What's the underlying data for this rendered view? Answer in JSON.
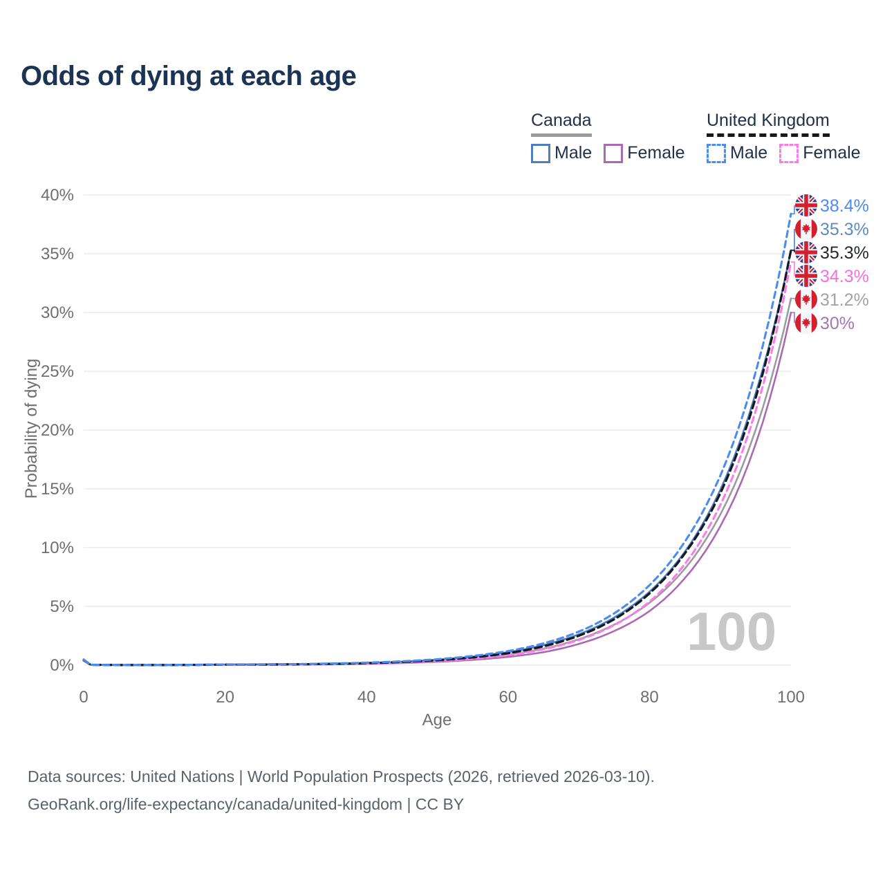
{
  "header": {
    "title": "Odds of dying at each age"
  },
  "legend": {
    "groups": [
      {
        "name": "Canada",
        "underline_color": "#9b9ba1",
        "underline_style": "solid",
        "items": [
          {
            "label": "Male",
            "color": "#4d7dbf",
            "style": "solid"
          },
          {
            "label": "Female",
            "color": "#aa6ab3",
            "style": "solid"
          }
        ]
      },
      {
        "name": "United Kingdom",
        "underline_color": "#17191d",
        "underline_style": "dashed",
        "items": [
          {
            "label": "Male",
            "color": "#4b8cf2",
            "style": "dashed"
          },
          {
            "label": "Female",
            "color": "#fb7ce9",
            "style": "dashed"
          }
        ]
      }
    ]
  },
  "chart_data": {
    "type": "line",
    "title": "Odds of dying at each age",
    "xlabel": "Age",
    "ylabel": "Probability of dying",
    "xlim": [
      0,
      100
    ],
    "ylim": [
      0,
      40
    ],
    "grid": "horizontal",
    "age_cursor": "100",
    "x_ticks": [
      0,
      20,
      40,
      60,
      80,
      100
    ],
    "y_ticks": [
      {
        "v": 0,
        "t": "0%"
      },
      {
        "v": 5,
        "t": "5%"
      },
      {
        "v": 10,
        "t": "10%"
      },
      {
        "v": 15,
        "t": "15%"
      },
      {
        "v": 20,
        "t": "20%"
      },
      {
        "v": 25,
        "t": "25%"
      },
      {
        "v": 30,
        "t": "30%"
      },
      {
        "v": 35,
        "t": "35%"
      },
      {
        "v": 40,
        "t": "40%"
      }
    ],
    "ages": [
      0,
      1,
      5,
      10,
      15,
      20,
      25,
      30,
      35,
      40,
      45,
      50,
      55,
      60,
      65,
      70,
      75,
      80,
      85,
      90,
      95,
      100
    ],
    "series": [
      {
        "id": "canada-female",
        "country": "Canada",
        "sex": "Female",
        "style": "solid",
        "color": "#aa6ab3",
        "width": 2.6,
        "dash": "",
        "values": [
          0.4,
          0.02,
          0.01,
          0.01,
          0.02,
          0.02,
          0.03,
          0.05,
          0.07,
          0.11,
          0.18,
          0.28,
          0.45,
          0.7,
          1.1,
          1.8,
          2.9,
          4.6,
          7.4,
          11.8,
          18.8,
          30
        ],
        "end_value": 30,
        "end_label": {
          "text": "30%",
          "color": "#a873b7",
          "flag": "canada"
        }
      },
      {
        "id": "canada-total",
        "country": "Canada",
        "sex": "Both",
        "style": "solid",
        "color": "#9b9ba1",
        "width": 2.6,
        "dash": "",
        "values": [
          0.45,
          0.03,
          0.01,
          0.01,
          0.02,
          0.04,
          0.05,
          0.07,
          0.09,
          0.14,
          0.24,
          0.37,
          0.57,
          0.9,
          1.4,
          2.2,
          3.45,
          5.3,
          8.2,
          12.8,
          20,
          31.2
        ],
        "end_value": 31.2,
        "end_label": {
          "text": "31.2%",
          "color": "#9fa3a8",
          "flag": "canada"
        }
      },
      {
        "id": "canada-male",
        "country": "Canada",
        "sex": "Male",
        "style": "solid",
        "color": "#4d7dbf",
        "width": 2.6,
        "dash": "",
        "values": [
          0.5,
          0.03,
          0.01,
          0.01,
          0.03,
          0.06,
          0.07,
          0.09,
          0.11,
          0.16,
          0.3,
          0.46,
          0.72,
          1.1,
          1.7,
          2.62,
          4.05,
          6.24,
          9.65,
          14.9,
          23.1,
          35.3
        ],
        "end_value": 35.3,
        "end_label": {
          "text": "35.3%",
          "color": "#5f8ac0",
          "flag": "canada"
        }
      },
      {
        "id": "uk-female",
        "country": "United Kingdom",
        "sex": "Female",
        "style": "dashed",
        "color": "#fb7ce9",
        "width": 3.1,
        "dash": "9 6",
        "values": [
          0.4,
          0.02,
          0.01,
          0.01,
          0.02,
          0.03,
          0.03,
          0.05,
          0.08,
          0.14,
          0.22,
          0.34,
          0.54,
          0.85,
          1.35,
          2.14,
          3.4,
          5.4,
          8.6,
          13.6,
          21.6,
          34.3
        ],
        "end_value": 34.3,
        "end_label": {
          "text": "34.3%",
          "color": "#f56fe2",
          "flag": "uk"
        }
      },
      {
        "id": "uk-total",
        "country": "United Kingdom",
        "sex": "Both",
        "style": "dashed",
        "color": "#17191d",
        "width": 3.3,
        "dash": "10 6",
        "values": [
          0.42,
          0.03,
          0.01,
          0.01,
          0.02,
          0.05,
          0.05,
          0.07,
          0.11,
          0.17,
          0.27,
          0.42,
          0.66,
          1.02,
          1.6,
          2.5,
          3.9,
          6.1,
          9.5,
          14.6,
          22.7,
          35.3
        ],
        "end_value": 35.3,
        "end_label": {
          "text": "35.3%",
          "color": "#23272e",
          "flag": "uk"
        }
      },
      {
        "id": "uk-male",
        "country": "United Kingdom",
        "sex": "Male",
        "style": "dashed",
        "color": "#4b8cf2",
        "width": 3.1,
        "dash": "9 6",
        "values": [
          0.45,
          0.03,
          0.01,
          0.01,
          0.03,
          0.06,
          0.07,
          0.09,
          0.14,
          0.21,
          0.33,
          0.5,
          0.78,
          1.2,
          1.85,
          2.85,
          4.4,
          6.8,
          10.5,
          16.1,
          24.9,
          38.4
        ],
        "end_value": 38.4,
        "end_label": {
          "text": "38.4%",
          "color": "#4b8cf2",
          "flag": "uk"
        }
      }
    ]
  },
  "footer": {
    "line1": "Data sources: United Nations | World Population Prospects (2026, retrieved 2026-03-10).",
    "line2": "GeoRank.org/life-expectancy/canada/united-kingdom | CC BY"
  }
}
